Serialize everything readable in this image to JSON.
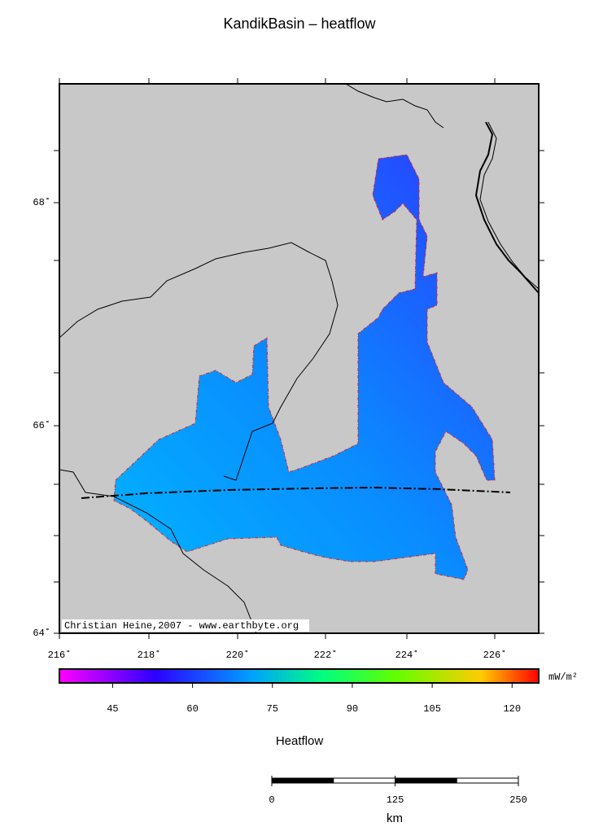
{
  "map": {
    "title": "KandikBasin – heatflow",
    "lat_labels": [
      "64˚",
      "66˚",
      "68˚"
    ],
    "lon_labels": [
      "216˚",
      "218˚",
      "220˚",
      "222˚",
      "224˚",
      "226˚"
    ],
    "credit": "Christian Heine,2007 - www.earthbyte.org"
  },
  "colorbar": {
    "label": "Heatflow",
    "unit": "mW/m²",
    "range": [
      35,
      125
    ],
    "ticks": [
      45,
      60,
      75,
      90,
      105,
      120
    ]
  },
  "scalebar": {
    "unit": "km",
    "range": [
      0,
      250
    ],
    "ticks": [
      0,
      125,
      250
    ]
  }
}
